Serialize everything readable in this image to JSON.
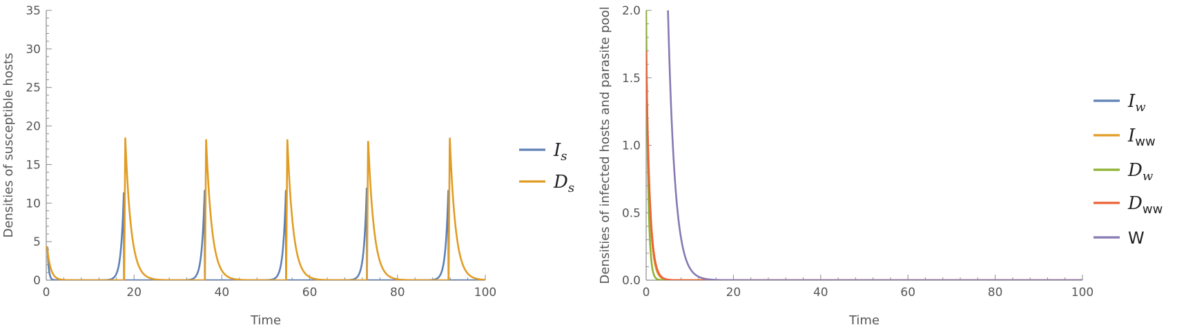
{
  "chart_data": [
    {
      "type": "line",
      "xlabel": "Time",
      "ylabel": "Densities of susceptible hosts",
      "xlim": [
        0,
        100
      ],
      "ylim": [
        0,
        35
      ],
      "xticks": [
        0,
        20,
        40,
        60,
        80,
        100
      ],
      "yticks": [
        0,
        5,
        10,
        15,
        20,
        25,
        30,
        35
      ],
      "legend_position": "right",
      "series": [
        {
          "name": "I_s",
          "legend_main": "I",
          "legend_sub": "s",
          "color": "#5E81B5",
          "peak_times": [
            0.3,
            17.7,
            36.1,
            54.6,
            73.0,
            91.6
          ],
          "peak_values": [
            4.2,
            12.0,
            12.0,
            12.0,
            12.0,
            12.0
          ]
        },
        {
          "name": "D_s",
          "legend_main": "D",
          "legend_sub": "s",
          "color": "#E19C24",
          "peak_times": [
            0.2,
            18.0,
            36.4,
            54.9,
            73.3,
            91.9
          ],
          "peak_values": [
            4.3,
            18.5,
            18.5,
            18.5,
            18.5,
            18.7
          ]
        }
      ]
    },
    {
      "type": "line",
      "xlabel": "Time",
      "ylabel": "Densities of infected hosts and parasite pool",
      "xlim": [
        0,
        100
      ],
      "ylim": [
        0,
        2.0
      ],
      "xticks": [
        0,
        20,
        40,
        60,
        80,
        100
      ],
      "yticks": [
        "0.0",
        "0.5",
        "1.0",
        "1.5",
        "2.0"
      ],
      "legend_position": "right",
      "series": [
        {
          "name": "I_w",
          "legend_main": "I",
          "legend_sub": "w",
          "color": "#5E81B5",
          "start_value": 1.7,
          "decay": 1.3
        },
        {
          "name": "I_ww",
          "legend_main": "I",
          "legend_sub": "ww",
          "color": "#E19C24",
          "start_value": 1.7,
          "decay": 1.3
        },
        {
          "name": "D_w",
          "legend_main": "D",
          "legend_sub": "w",
          "color": "#8FB032",
          "start_value": 2.0,
          "decay": 2.2
        },
        {
          "name": "D_ww",
          "legend_main": "D",
          "legend_sub": "ww",
          "color": "#EB6235",
          "start_value": 1.7,
          "decay": 1.2
        },
        {
          "name": "W",
          "legend_main": "W",
          "legend_sub": "",
          "color": "#8778B3",
          "exit_time": 5.0,
          "decay": 0.62
        }
      ]
    }
  ]
}
